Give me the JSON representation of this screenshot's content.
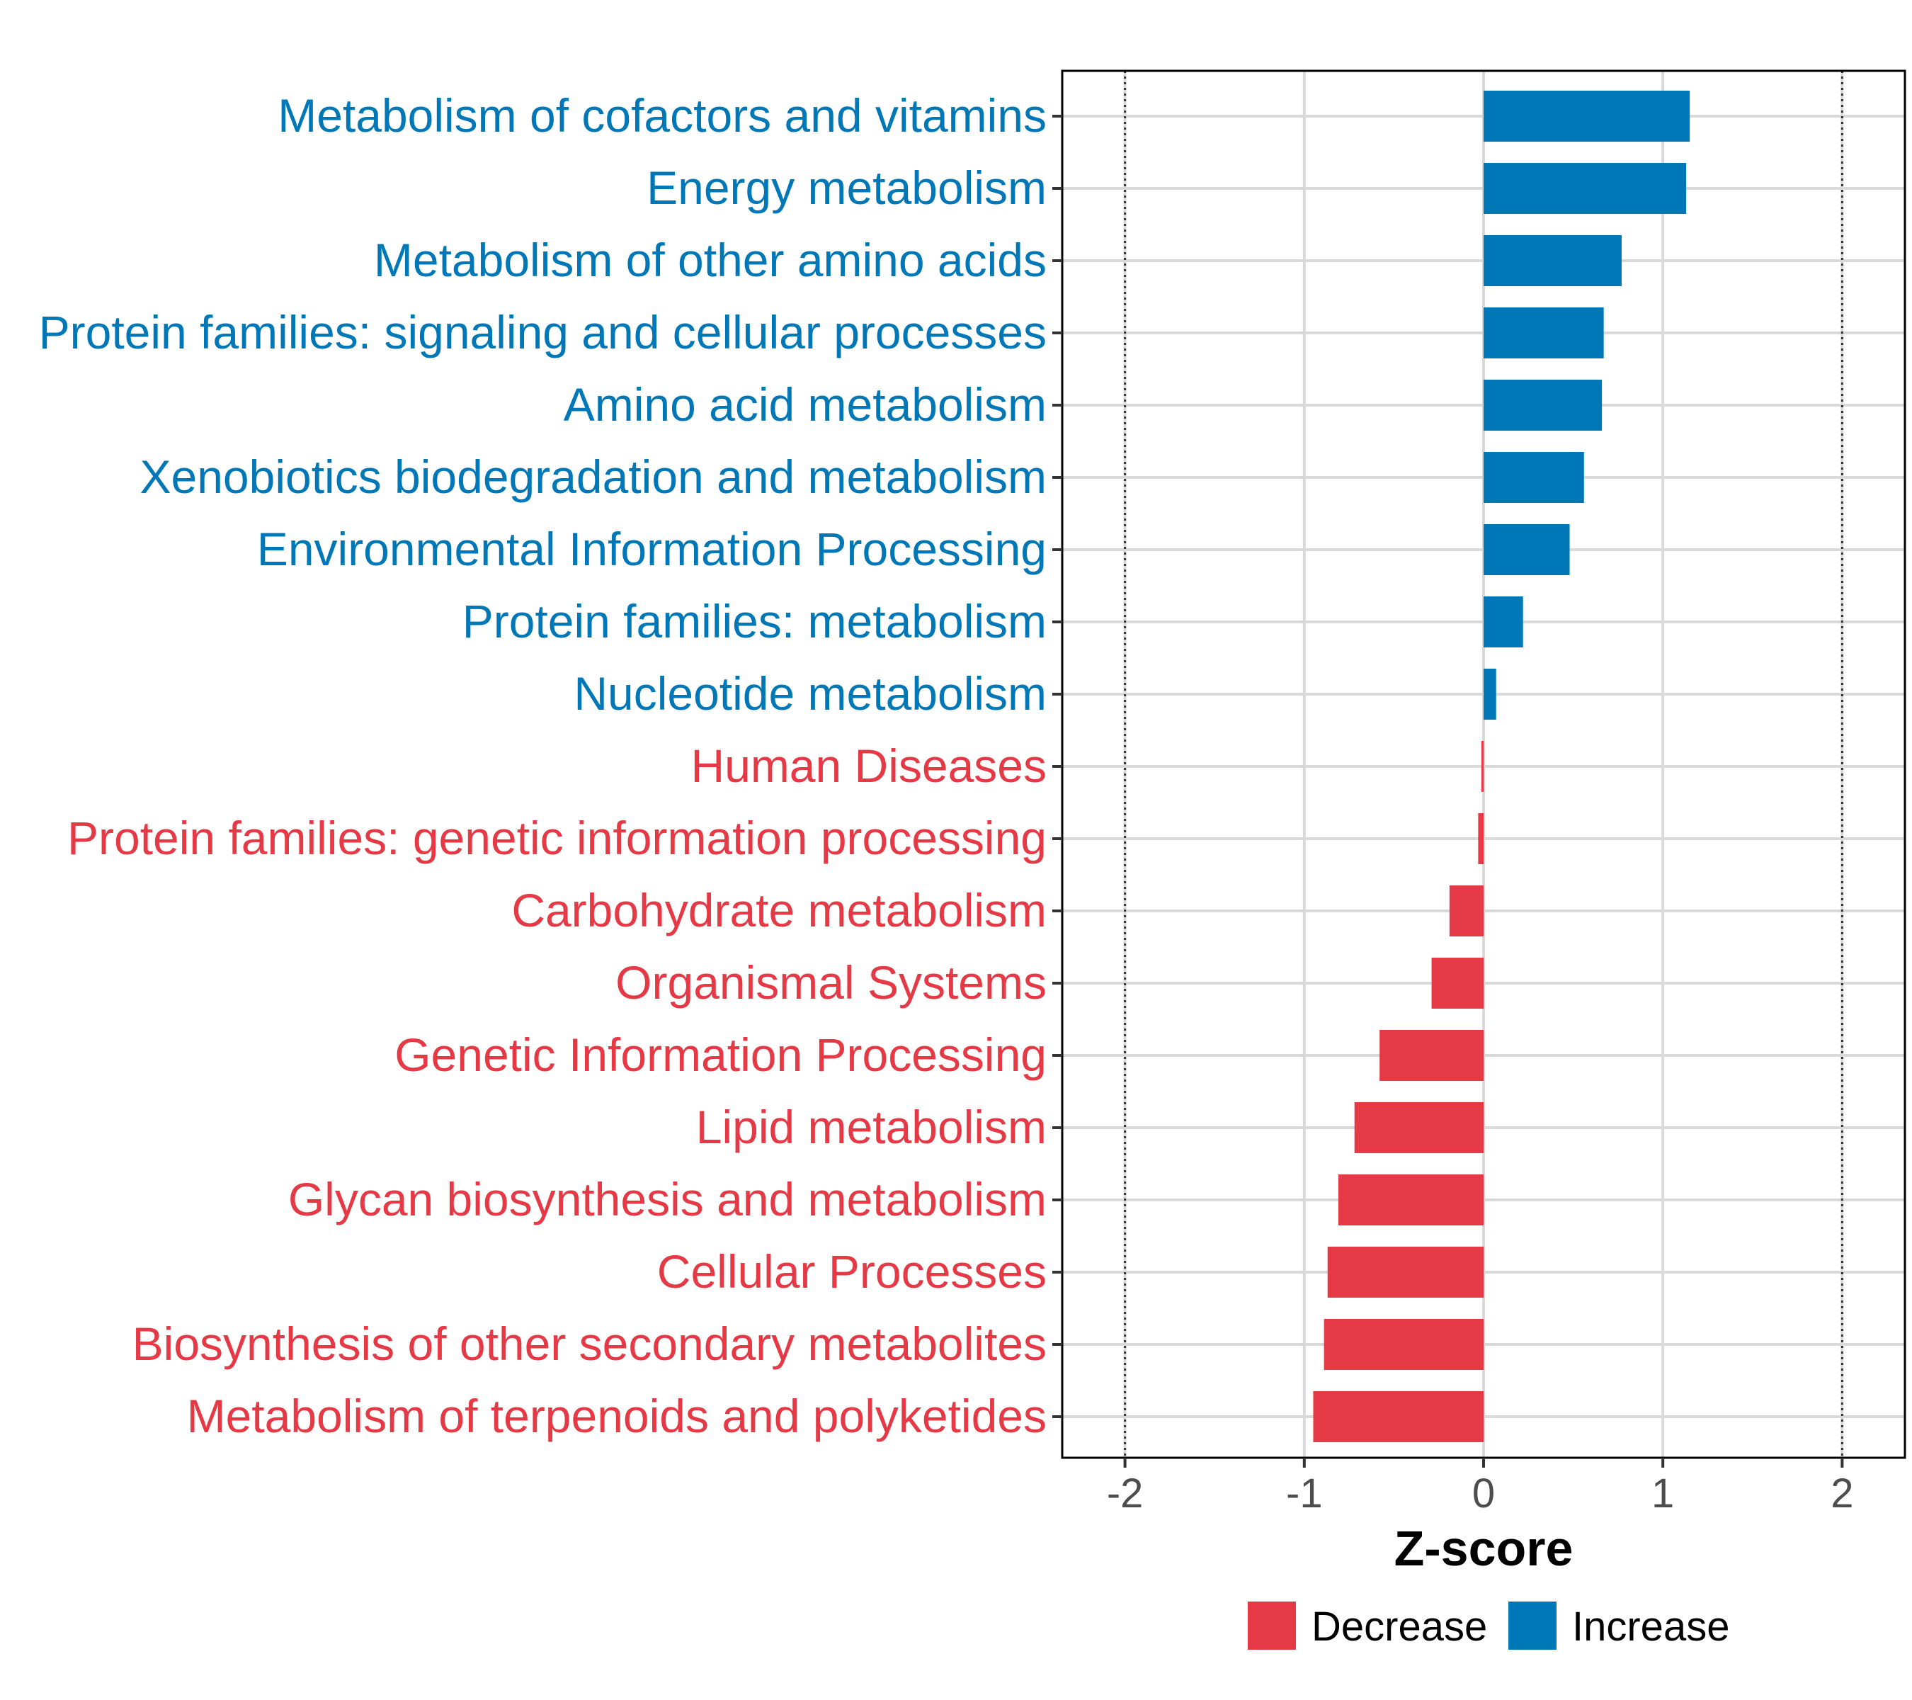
{
  "chart_data": {
    "type": "bar",
    "orientation": "horizontal",
    "xlabel": "Z-score",
    "ylabel": "",
    "xlim": [
      -2.35,
      2.35
    ],
    "xticks": [
      "-2",
      "-1",
      "0",
      "1",
      "2"
    ],
    "xtick_values": [
      -2,
      -1,
      0,
      1,
      2
    ],
    "reference_lines": [
      -2,
      2
    ],
    "grid": true,
    "colors": {
      "Decrease": "#e63946",
      "Increase": "#0077b6"
    },
    "categories": [
      "Metabolism of cofactors and vitamins",
      "Energy metabolism",
      "Metabolism of other amino acids",
      "Protein families: signaling and cellular processes",
      "Amino acid metabolism",
      "Xenobiotics biodegradation and metabolism",
      "Environmental Information Processing",
      "Protein families: metabolism",
      "Nucleotide metabolism",
      "Human Diseases",
      "Protein families: genetic information processing",
      "Carbohydrate metabolism",
      "Organismal Systems",
      "Genetic Information Processing",
      "Lipid metabolism",
      "Glycan biosynthesis and metabolism",
      "Cellular Processes",
      "Biosynthesis of other secondary metabolites",
      "Metabolism of terpenoids and polyketides"
    ],
    "values": [
      1.15,
      1.13,
      0.77,
      0.67,
      0.66,
      0.56,
      0.48,
      0.22,
      0.07,
      -0.01,
      -0.03,
      -0.19,
      -0.29,
      -0.58,
      -0.72,
      -0.81,
      -0.87,
      -0.89,
      -0.95
    ],
    "groups": [
      "Increase",
      "Increase",
      "Increase",
      "Increase",
      "Increase",
      "Increase",
      "Increase",
      "Increase",
      "Increase",
      "Decrease",
      "Decrease",
      "Decrease",
      "Decrease",
      "Decrease",
      "Decrease",
      "Decrease",
      "Decrease",
      "Decrease",
      "Decrease"
    ],
    "legend": {
      "position": "bottom",
      "items": [
        "Decrease",
        "Increase"
      ]
    }
  }
}
